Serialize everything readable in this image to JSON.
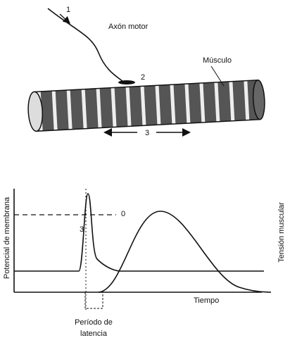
{
  "labels": {
    "stimulus": "1",
    "axon": "Axón motor",
    "junction": "2",
    "muscle": "Músculo",
    "propagation": "3"
  },
  "graph": {
    "y_label": "Potencial de membrana",
    "y2_label": "Tensión muscular",
    "threshold": "0",
    "spike": "3",
    "x_label": "Tiempo",
    "latency": [
      "Período de",
      "latencia"
    ]
  }
}
